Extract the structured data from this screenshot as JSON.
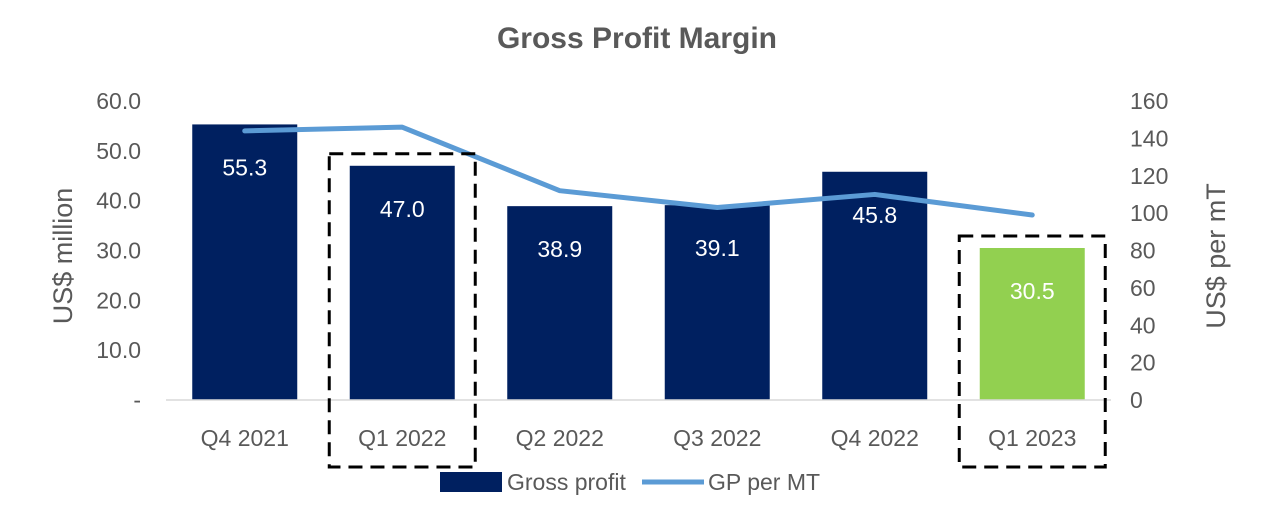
{
  "chart_data": {
    "type": "bar",
    "title": "Gross Profit Margin",
    "categories": [
      "Q4 2021",
      "Q1 2022",
      "Q2 2022",
      "Q3 2022",
      "Q4 2022",
      "Q1 2023"
    ],
    "series": [
      {
        "name": "Gross profit",
        "type": "bar",
        "axis": "left",
        "values": [
          55.3,
          47.0,
          38.9,
          39.1,
          45.8,
          30.5
        ],
        "labels": [
          "55.3",
          "47.0",
          "38.9",
          "39.1",
          "45.8",
          "30.5"
        ],
        "color": "#002060",
        "highlight_color": "#92D050",
        "highlight_index": 5
      },
      {
        "name": "GP per MT",
        "type": "line",
        "axis": "right",
        "values": [
          144,
          146,
          112,
          103,
          110,
          99
        ],
        "color": "#5B9BD5"
      }
    ],
    "ylabel": "US$ million",
    "ylabel_right": "US$ per mT",
    "ylim": [
      0,
      60
    ],
    "ylim_right": [
      0,
      160
    ],
    "yticks": [
      "-",
      "10.0",
      "20.0",
      "30.0",
      "40.0",
      "50.0",
      "60.0"
    ],
    "yticks_right": [
      "0",
      "20",
      "40",
      "60",
      "80",
      "100",
      "120",
      "140",
      "160"
    ],
    "highlighted_categories": [
      "Q1 2022",
      "Q1 2023"
    ],
    "legend_position": "bottom",
    "grid": false
  }
}
